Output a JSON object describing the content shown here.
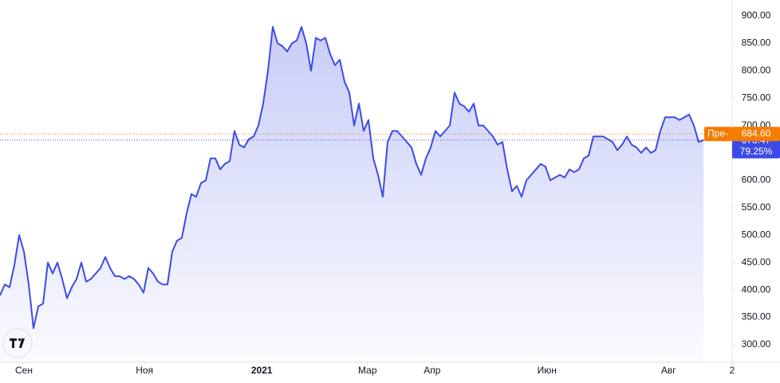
{
  "chart_data": {
    "type": "area-line",
    "series": [
      {
        "color": "#3d4be6",
        "values": [
          390,
          410,
          405,
          445,
          500,
          470,
          410,
          330,
          370,
          375,
          450,
          430,
          450,
          420,
          385,
          405,
          420,
          450,
          415,
          420,
          430,
          440,
          460,
          440,
          425,
          425,
          420,
          425,
          420,
          410,
          395,
          440,
          430,
          415,
          410,
          410,
          470,
          490,
          495,
          540,
          575,
          570,
          595,
          600,
          640,
          640,
          620,
          630,
          635,
          690,
          665,
          660,
          675,
          680,
          700,
          740,
          800,
          880,
          850,
          845,
          835,
          850,
          855,
          880,
          850,
          800,
          860,
          855,
          860,
          830,
          810,
          820,
          780,
          760,
          700,
          740,
          690,
          710,
          640,
          610,
          570,
          670,
          690,
          690,
          680,
          670,
          660,
          630,
          610,
          640,
          660,
          690,
          680,
          690,
          700,
          760,
          740,
          735,
          725,
          740,
          700,
          700,
          690,
          680,
          665,
          670,
          620,
          580,
          590,
          570,
          600,
          610,
          620,
          630,
          625,
          600,
          605,
          610,
          605,
          620,
          615,
          620,
          640,
          645,
          680,
          680,
          680,
          675,
          670,
          655,
          665,
          680,
          665,
          660,
          650,
          660,
          650,
          655,
          690,
          715,
          715,
          715,
          710,
          715,
          720,
          700,
          670,
          673.47
        ]
      }
    ],
    "xlim": [
      0,
      153
    ],
    "xticks": [
      {
        "value": 5,
        "label": "Сен"
      },
      {
        "value": 30.2,
        "label": "Ноя"
      },
      {
        "value": 54.7,
        "label": "2021"
      },
      {
        "value": 76.8,
        "label": "Мар"
      },
      {
        "value": 90.3,
        "label": "Апр"
      },
      {
        "value": 114.3,
        "label": "Июн"
      },
      {
        "value": 139.7,
        "label": "Авг"
      },
      {
        "value": 153,
        "label": "2"
      }
    ],
    "ylim": [
      268,
      929
    ],
    "yticks": [
      {
        "value": 300,
        "label": "300.00"
      },
      {
        "value": 350,
        "label": "350.00"
      },
      {
        "value": 400,
        "label": "400.00"
      },
      {
        "value": 450,
        "label": "450.00"
      },
      {
        "value": 500,
        "label": "500.00"
      },
      {
        "value": 550,
        "label": "550.00"
      },
      {
        "value": 600,
        "label": "600.00"
      },
      {
        "value": 650,
        "label": "650.00"
      },
      {
        "value": 700,
        "label": "700.00"
      },
      {
        "value": 750,
        "label": "750.00"
      },
      {
        "value": 800,
        "label": "800.00"
      },
      {
        "value": 850,
        "label": "850.00"
      },
      {
        "value": 900,
        "label": "900.00"
      }
    ],
    "prev_close": {
      "tag": "Пре-",
      "value": 684.6,
      "label": "684.60",
      "color": "#f57c00"
    },
    "change": {
      "value": 79.25,
      "label": "79.25%"
    }
  }
}
